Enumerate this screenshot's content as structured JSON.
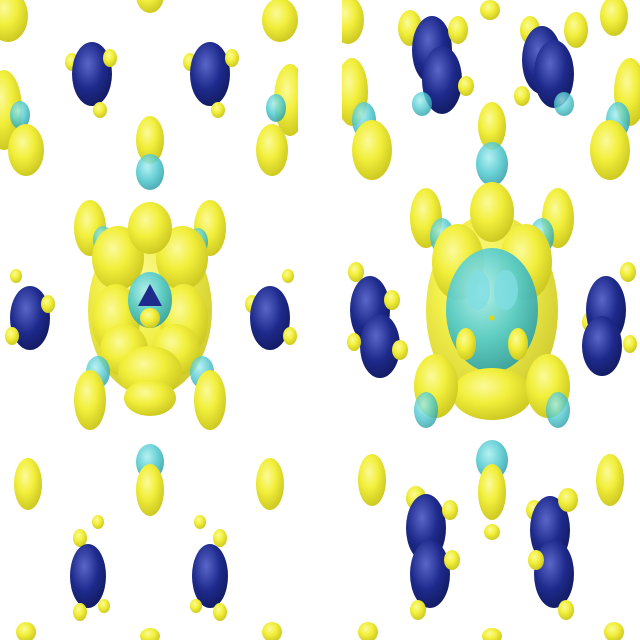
{
  "colors": {
    "background": "#ffffff",
    "atom": "#1e2a8c",
    "atom_highlight": "#5a66c8",
    "positive_lobe": "#f2ef3c",
    "positive_lobe_shade": "#c9c51f",
    "negative_lobe": "#4fc9cf"
  },
  "panels": [
    {
      "name": "left-panel",
      "description": ""
    },
    {
      "name": "right-panel",
      "description": ""
    }
  ]
}
